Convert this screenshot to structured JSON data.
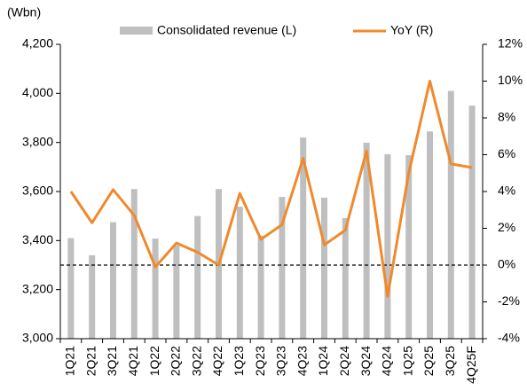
{
  "chart_data": {
    "type": "bar_line",
    "unit_label": "(Wbn)",
    "categories": [
      "1Q21",
      "2Q21",
      "3Q21",
      "4Q21",
      "1Q22",
      "2Q22",
      "3Q22",
      "4Q22",
      "1Q23",
      "2Q23",
      "3Q23",
      "4Q23",
      "1Q24",
      "2Q24",
      "3Q24",
      "4Q24",
      "1Q25",
      "2Q25",
      "3Q25",
      "4Q25F"
    ],
    "series": [
      {
        "name": "Consolidated revenue (L)",
        "type": "bar",
        "color": "#bfbfbf",
        "values": [
          3410,
          3340,
          3475,
          3610,
          3408,
          3380,
          3500,
          3610,
          3538,
          3420,
          3578,
          3820,
          3575,
          3492,
          3799,
          3752,
          3748,
          3845,
          4010,
          3950
        ]
      },
      {
        "name": "YoY (R)",
        "type": "line",
        "axis": "y2",
        "color": "#f0892b",
        "values": [
          4.0,
          2.3,
          4.1,
          2.7,
          -0.1,
          1.2,
          0.7,
          0.0,
          3.9,
          1.4,
          2.2,
          5.8,
          1.1,
          1.9,
          6.2,
          -1.7,
          5.0,
          10.0,
          5.5,
          5.3
        ]
      }
    ],
    "ylim": [
      3000,
      4200
    ],
    "yticks": [
      {
        "value": 3000,
        "label": "3,000"
      },
      {
        "value": 3200,
        "label": "3,200"
      },
      {
        "value": 3400,
        "label": "3,400"
      },
      {
        "value": 3600,
        "label": "3,600"
      },
      {
        "value": 3800,
        "label": "3,800"
      },
      {
        "value": 4000,
        "label": "4,000"
      },
      {
        "value": 4200,
        "label": "4,200"
      }
    ],
    "y2lim": [
      -4,
      12
    ],
    "y2ticks": [
      {
        "value": -4,
        "label": "-4%"
      },
      {
        "value": -2,
        "label": "-2%"
      },
      {
        "value": 0,
        "label": "0%"
      },
      {
        "value": 2,
        "label": "2%"
      },
      {
        "value": 4,
        "label": "4%"
      },
      {
        "value": 6,
        "label": "6%"
      },
      {
        "value": 8,
        "label": "8%"
      },
      {
        "value": 10,
        "label": "10%"
      },
      {
        "value": 12,
        "label": "12%"
      }
    ],
    "reference_line": {
      "axis": "y2",
      "value": 0,
      "style": "dashed"
    },
    "grid": false,
    "legend": "top"
  }
}
